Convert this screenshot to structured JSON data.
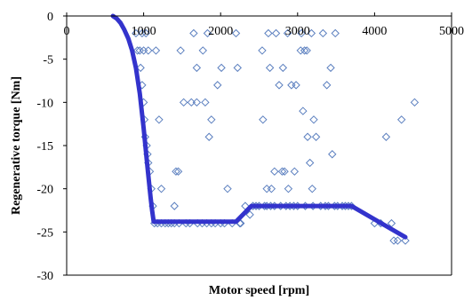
{
  "chart_data": {
    "type": "scatter",
    "title": "",
    "xlabel": "Motor speed [rpm]",
    "ylabel": "Regenerative torque [Nm]",
    "xlim": [
      0,
      5000
    ],
    "ylim": [
      -30,
      0
    ],
    "x_ticks": [
      0,
      1000,
      2000,
      3000,
      4000,
      5000
    ],
    "y_ticks": [
      0,
      -5,
      -10,
      -15,
      -20,
      -25,
      -30
    ],
    "x_tick_labels": [
      "0",
      "1000",
      "2000",
      "3000",
      "4000",
      "5000"
    ],
    "y_tick_labels": [
      "0",
      "-5",
      "-10",
      "-15",
      "-20",
      "-25",
      "-30"
    ],
    "grid": false,
    "legend": "none",
    "colors": {
      "markers": "#5b7fbf",
      "curve": "#3333cc",
      "axes": "#000000"
    },
    "series": [
      {
        "kind": "scatter",
        "marker": "diamond",
        "points": [
          [
            900,
            -2
          ],
          [
            920,
            -4
          ],
          [
            950,
            -4
          ],
          [
            980,
            -2
          ],
          [
            1000,
            -4
          ],
          [
            1030,
            -2
          ],
          [
            1060,
            -4
          ],
          [
            960,
            -6
          ],
          [
            980,
            -8
          ],
          [
            1000,
            -10
          ],
          [
            1010,
            -12
          ],
          [
            1020,
            -14
          ],
          [
            1040,
            -15
          ],
          [
            1050,
            -16
          ],
          [
            1060,
            -17
          ],
          [
            1080,
            -18
          ],
          [
            1100,
            -20
          ],
          [
            1120,
            -22
          ],
          [
            1140,
            -24
          ],
          [
            1180,
            -24
          ],
          [
            1160,
            -4
          ],
          [
            1200,
            -12
          ],
          [
            1230,
            -20
          ],
          [
            1230,
            -24
          ],
          [
            1280,
            -24
          ],
          [
            1320,
            -24
          ],
          [
            1360,
            -24
          ],
          [
            1400,
            -24
          ],
          [
            1400,
            -22
          ],
          [
            1420,
            -18
          ],
          [
            1450,
            -18
          ],
          [
            1460,
            -24
          ],
          [
            1480,
            -4
          ],
          [
            1520,
            -10
          ],
          [
            1550,
            -24
          ],
          [
            1600,
            -24
          ],
          [
            1620,
            -10
          ],
          [
            1650,
            -2
          ],
          [
            1690,
            -10
          ],
          [
            1690,
            -6
          ],
          [
            1700,
            -24
          ],
          [
            1760,
            -24
          ],
          [
            1770,
            -4
          ],
          [
            1800,
            -10
          ],
          [
            1820,
            -24
          ],
          [
            1830,
            -2
          ],
          [
            1850,
            -14
          ],
          [
            1880,
            -12
          ],
          [
            1880,
            -24
          ],
          [
            1930,
            -24
          ],
          [
            1960,
            -8
          ],
          [
            2000,
            -24
          ],
          [
            2010,
            -6
          ],
          [
            2050,
            -24
          ],
          [
            2090,
            -20
          ],
          [
            2150,
            -24
          ],
          [
            2200,
            -2
          ],
          [
            2220,
            -6
          ],
          [
            2250,
            -24
          ],
          [
            2260,
            -24
          ],
          [
            2320,
            -22
          ],
          [
            2380,
            -23
          ],
          [
            2420,
            -22
          ],
          [
            2460,
            -22
          ],
          [
            2500,
            -22
          ],
          [
            2540,
            -4
          ],
          [
            2550,
            -12
          ],
          [
            2570,
            -22
          ],
          [
            2600,
            -20
          ],
          [
            2600,
            -22
          ],
          [
            2620,
            -2
          ],
          [
            2640,
            -6
          ],
          [
            2650,
            -22
          ],
          [
            2660,
            -20
          ],
          [
            2700,
            -22
          ],
          [
            2700,
            -18
          ],
          [
            2720,
            -2
          ],
          [
            2760,
            -8
          ],
          [
            2780,
            -22
          ],
          [
            2800,
            -18
          ],
          [
            2810,
            -6
          ],
          [
            2830,
            -18
          ],
          [
            2850,
            -22
          ],
          [
            2870,
            -2
          ],
          [
            2880,
            -20
          ],
          [
            2900,
            -22
          ],
          [
            2920,
            -8
          ],
          [
            2950,
            -22
          ],
          [
            2960,
            -18
          ],
          [
            2980,
            -8
          ],
          [
            3000,
            -22
          ],
          [
            3040,
            -4
          ],
          [
            3050,
            -2
          ],
          [
            3070,
            -11
          ],
          [
            3090,
            -4
          ],
          [
            3100,
            -22
          ],
          [
            3120,
            -4
          ],
          [
            3130,
            -14
          ],
          [
            3160,
            -17
          ],
          [
            3180,
            -2
          ],
          [
            3190,
            -20
          ],
          [
            3200,
            -22
          ],
          [
            3210,
            -12
          ],
          [
            3240,
            -14
          ],
          [
            3300,
            -22
          ],
          [
            3330,
            -2
          ],
          [
            3360,
            -22
          ],
          [
            3380,
            -8
          ],
          [
            3400,
            -22
          ],
          [
            3430,
            -6
          ],
          [
            3450,
            -16
          ],
          [
            3480,
            -22
          ],
          [
            3490,
            -2
          ],
          [
            3520,
            -22
          ],
          [
            3580,
            -22
          ],
          [
            3620,
            -22
          ],
          [
            3660,
            -22
          ],
          [
            3700,
            -22
          ],
          [
            4000,
            -24
          ],
          [
            4080,
            -24
          ],
          [
            4150,
            -14
          ],
          [
            4220,
            -24
          ],
          [
            4250,
            -26
          ],
          [
            4300,
            -26
          ],
          [
            4350,
            -12
          ],
          [
            4400,
            -26
          ],
          [
            4520,
            -10
          ]
        ]
      },
      {
        "kind": "line",
        "points": [
          [
            600,
            0
          ],
          [
            650,
            -0.3
          ],
          [
            700,
            -0.8
          ],
          [
            750,
            -1.6
          ],
          [
            800,
            -2.6
          ],
          [
            850,
            -4
          ],
          [
            900,
            -6
          ],
          [
            950,
            -9
          ],
          [
            1000,
            -13
          ],
          [
            1050,
            -17.5
          ],
          [
            1090,
            -21
          ],
          [
            1110,
            -22.5
          ],
          [
            1130,
            -23.8
          ],
          [
            2200,
            -23.8
          ],
          [
            2400,
            -22
          ],
          [
            3700,
            -22
          ],
          [
            4400,
            -25.6
          ]
        ]
      }
    ]
  }
}
